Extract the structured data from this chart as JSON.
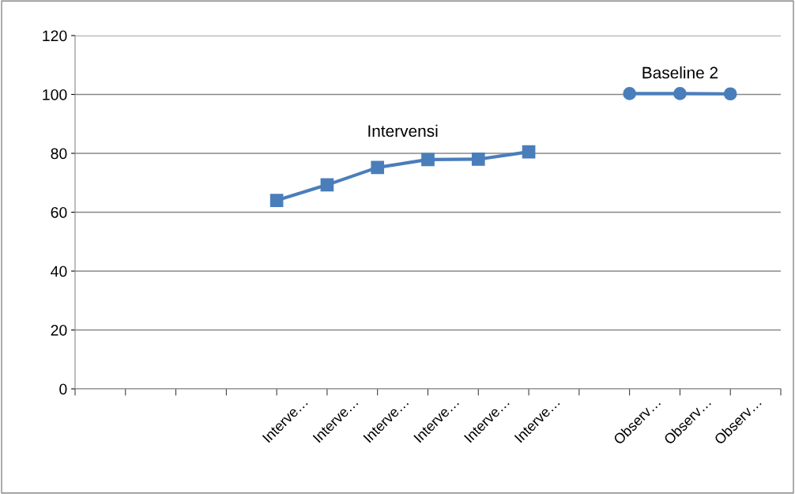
{
  "chart_data": {
    "type": "line",
    "categories": [
      null,
      null,
      null,
      null,
      "Interve…",
      "Interve…",
      "Interve…",
      "Interve…",
      "Interve…",
      "Interve…",
      null,
      "Observ…",
      "Observ…",
      "Observ…"
    ],
    "series": [
      {
        "name": "Intervensi",
        "color": "#4a7ebb",
        "marker": "square",
        "values": [
          null,
          null,
          null,
          null,
          64,
          69.3,
          75.2,
          77.9,
          78,
          80.5,
          null,
          null,
          null,
          null
        ]
      },
      {
        "name": "Baseline 2",
        "color": "#4a7ebb",
        "marker": "circle",
        "values": [
          null,
          null,
          null,
          null,
          null,
          null,
          null,
          null,
          null,
          null,
          null,
          100.3,
          100.3,
          100.2
        ]
      }
    ],
    "ylim": [
      0,
      120
    ],
    "yticks": [
      0,
      20,
      40,
      60,
      80,
      100,
      120
    ],
    "grid": "y",
    "legend": false,
    "line_style": "solid"
  }
}
